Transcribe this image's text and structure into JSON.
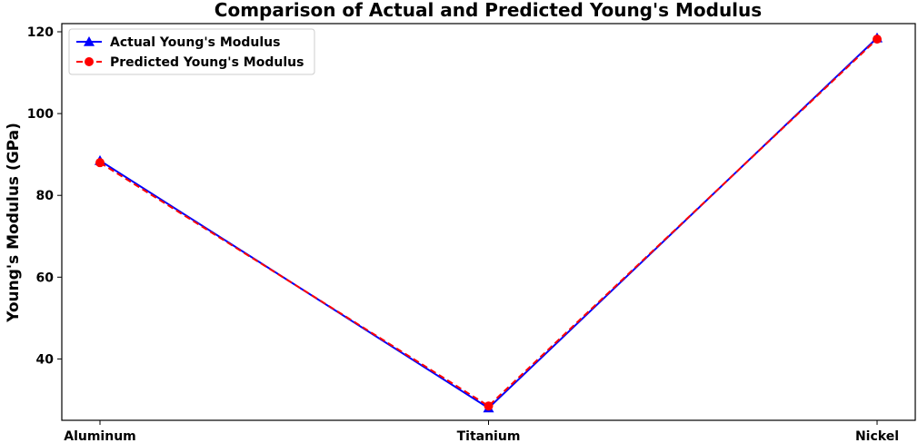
{
  "chart_data": {
    "type": "line",
    "title": "Comparison of Actual and Predicted Young's Modulus",
    "xlabel": "",
    "ylabel": "Young's Modulus (GPa)",
    "categories": [
      "Aluminum",
      "Titanium",
      "Nickel"
    ],
    "ylim": [
      25,
      122
    ],
    "yticks": [
      40,
      60,
      80,
      100,
      120
    ],
    "grid": false,
    "legend_position": "top-left",
    "series": [
      {
        "name": "Actual Young's Modulus",
        "values": [
          88.5,
          28.0,
          118.5
        ],
        "color": "#0000ff",
        "line_style": "solid",
        "marker": "triangle"
      },
      {
        "name": "Predicted Young's Modulus",
        "values": [
          88.0,
          28.5,
          118.2
        ],
        "color": "#ff0000",
        "line_style": "dashed",
        "marker": "circle"
      }
    ]
  }
}
